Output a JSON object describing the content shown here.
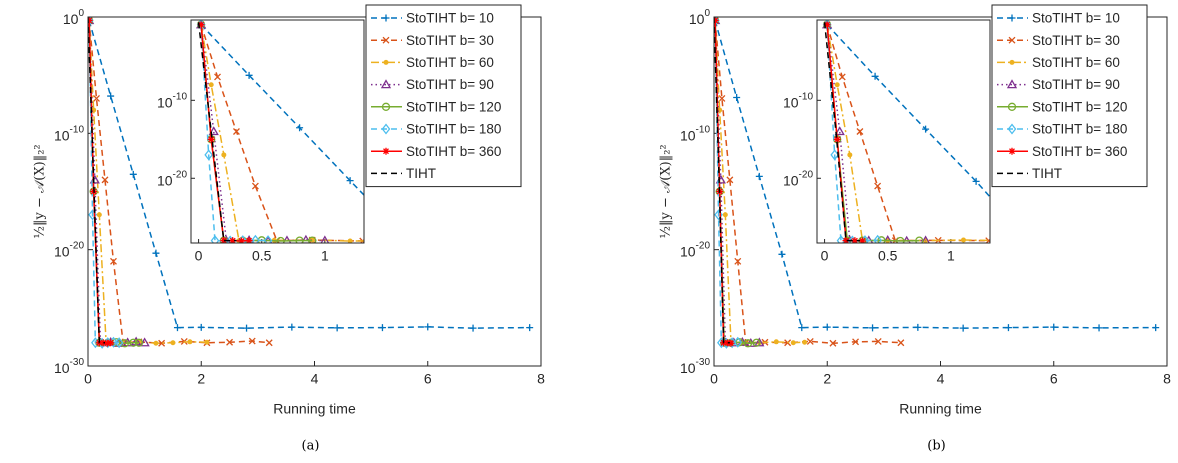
{
  "chart_data": [
    {
      "type": "line",
      "caption": "(a)",
      "xlabel": "Running time",
      "ylabel": "½‖y − 𝒜(X)‖₂²",
      "yscale": "log",
      "xlim": [
        0,
        8
      ],
      "xticks": [
        0,
        2,
        4,
        6,
        8
      ],
      "ylim": [
        1e-30,
        1
      ],
      "yticks": [
        {
          "value": 1,
          "label": "10^0"
        },
        {
          "value": 1e-10,
          "label": "10^-10"
        },
        {
          "value": 1e-20,
          "label": "10^-20"
        },
        {
          "value": 1e-30,
          "label": "10^-30"
        }
      ],
      "inset": {
        "xlim": [
          -0.06,
          1.31
        ],
        "xticks": [
          0,
          0.5,
          1
        ],
        "ylim": [
          5e-29,
          2
        ],
        "yticks": [
          {
            "value": 1e-10,
            "label": "10^-10"
          },
          {
            "value": 1e-20,
            "label": "10^-20"
          }
        ]
      },
      "series": [
        {
          "name": "StoTIHT b= 10",
          "color": "#0072BD",
          "linestyle": "dashed",
          "marker": "plus",
          "x": [
            0.02,
            0.4,
            0.8,
            1.2,
            1.58,
            2.0,
            2.8,
            3.6,
            4.4,
            5.2,
            6.0,
            6.8,
            7.8
          ],
          "values": [
            0.5,
            1.6e-07,
            3e-14,
            5e-21,
            2e-27,
            2.1e-27,
            1.8e-27,
            2.2e-27,
            1.9e-27,
            2e-27,
            2.3e-27,
            1.8e-27,
            2e-27
          ]
        },
        {
          "name": "StoTIHT b= 30",
          "color": "#D95319",
          "linestyle": "dashed",
          "marker": "cross",
          "x": [
            0.02,
            0.15,
            0.3,
            0.45,
            0.62,
            0.9,
            1.3,
            1.7,
            2.1,
            2.5,
            2.9,
            3.2
          ],
          "values": [
            0.5,
            1e-07,
            1e-14,
            1e-21,
            1e-28,
            1.2e-28,
            9e-29,
            1.3e-28,
            1e-28,
            1.1e-28,
            1.4e-28,
            1e-28
          ]
        },
        {
          "name": "StoTIHT b= 60",
          "color": "#EDB120",
          "linestyle": "dashdot",
          "marker": "dot",
          "x": [
            0.02,
            0.1,
            0.2,
            0.32,
            0.6,
            0.9,
            1.2,
            1.5,
            1.8,
            2.1
          ],
          "values": [
            0.5,
            1e-08,
            1e-17,
            1e-28,
            1.1e-28,
            1.2e-28,
            9e-29,
            1e-28,
            1.2e-28,
            1.1e-28
          ]
        },
        {
          "name": "StoTIHT b= 90",
          "color": "#7E2F8E",
          "linestyle": "dotted",
          "marker": "triangle",
          "x": [
            0.02,
            0.12,
            0.22,
            0.4,
            0.55,
            0.7,
            0.85,
            1.0
          ],
          "values": [
            0.5,
            1e-14,
            1e-28,
            1.1e-28,
            9e-29,
            1e-28,
            1.2e-28,
            1e-28
          ]
        },
        {
          "name": "StoTIHT b= 120",
          "color": "#77AC30",
          "linestyle": "solid",
          "marker": "circle",
          "x": [
            0.02,
            0.1,
            0.2,
            0.35,
            0.5,
            0.65,
            0.8,
            0.9
          ],
          "values": [
            0.5,
            1e-15,
            1e-28,
            1e-28,
            1.1e-28,
            9e-29,
            1e-28,
            1e-28
          ]
        },
        {
          "name": "StoTIHT b= 180",
          "color": "#4DBEEE",
          "linestyle": "dashed",
          "marker": "diamond",
          "x": [
            0.02,
            0.08,
            0.13,
            0.25,
            0.35,
            0.45,
            0.55
          ],
          "values": [
            0.5,
            1e-17,
            1e-28,
            9e-29,
            1e-28,
            1.1e-28,
            1e-28
          ]
        },
        {
          "name": "StoTIHT b= 360",
          "color": "#FF0000",
          "linestyle": "solid",
          "marker": "star",
          "x": [
            0.02,
            0.1,
            0.2,
            0.27,
            0.34,
            0.4
          ],
          "values": [
            0.5,
            1e-15,
            1e-28,
            1e-28,
            9e-29,
            1e-28
          ]
        },
        {
          "name": "TIHT",
          "color": "#000000",
          "linestyle": "dashed",
          "marker": "none",
          "x": [
            0,
            0.1,
            0.2,
            0.3
          ],
          "values": [
            1,
            1e-14,
            1e-28,
            1e-28
          ]
        }
      ]
    },
    {
      "type": "line",
      "caption": "(b)",
      "xlabel": "Running time",
      "ylabel": "½‖y − 𝒜(X)‖₂²",
      "yscale": "log",
      "xlim": [
        0,
        8
      ],
      "xticks": [
        0,
        2,
        4,
        6,
        8
      ],
      "ylim": [
        1e-30,
        1
      ],
      "yticks": [
        {
          "value": 1,
          "label": "10^0"
        },
        {
          "value": 1e-10,
          "label": "10^-10"
        },
        {
          "value": 1e-20,
          "label": "10^-20"
        },
        {
          "value": 1e-30,
          "label": "10^-30"
        }
      ],
      "inset": {
        "xlim": [
          -0.06,
          1.31
        ],
        "xticks": [
          0,
          0.5,
          1
        ],
        "ylim": [
          5e-29,
          2
        ],
        "yticks": [
          {
            "value": 1e-10,
            "label": "10^-10"
          },
          {
            "value": 1e-20,
            "label": "10^-20"
          }
        ]
      },
      "series": [
        {
          "name": "StoTIHT b= 10",
          "color": "#0072BD",
          "linestyle": "dashed",
          "marker": "plus",
          "x": [
            0.02,
            0.4,
            0.8,
            1.2,
            1.55,
            2.0,
            2.8,
            3.6,
            4.4,
            5.2,
            6.0,
            6.8,
            7.8
          ],
          "values": [
            0.5,
            1.2e-07,
            2e-14,
            4e-21,
            2e-27,
            2.2e-27,
            1.9e-27,
            2.1e-27,
            1.8e-27,
            2e-27,
            2.2e-27,
            1.9e-27,
            2e-27
          ]
        },
        {
          "name": "StoTIHT b= 30",
          "color": "#D95319",
          "linestyle": "dashed",
          "marker": "cross",
          "x": [
            0.02,
            0.14,
            0.28,
            0.42,
            0.56,
            0.9,
            1.3,
            1.7,
            2.1,
            2.5,
            2.9,
            3.3
          ],
          "values": [
            0.5,
            1e-07,
            1e-14,
            1e-21,
            1e-28,
            1.1e-28,
            1e-28,
            1.3e-28,
            9e-29,
            1.2e-28,
            1.3e-28,
            1e-28
          ]
        },
        {
          "name": "StoTIHT b= 60",
          "color": "#EDB120",
          "linestyle": "dashdot",
          "marker": "dot",
          "x": [
            0.02,
            0.1,
            0.2,
            0.3,
            0.5,
            0.8,
            1.1,
            1.4,
            1.6
          ],
          "values": [
            0.5,
            1e-08,
            1e-17,
            1e-28,
            1.1e-28,
            1e-28,
            1.2e-28,
            1e-28,
            1.1e-28
          ]
        },
        {
          "name": "StoTIHT b= 90",
          "color": "#7E2F8E",
          "linestyle": "dotted",
          "marker": "triangle",
          "x": [
            0.02,
            0.12,
            0.2,
            0.35,
            0.5,
            0.65,
            0.8
          ],
          "values": [
            0.5,
            1e-14,
            1e-28,
            1e-28,
            1.1e-28,
            9e-29,
            1e-28
          ]
        },
        {
          "name": "StoTIHT b= 120",
          "color": "#77AC30",
          "linestyle": "solid",
          "marker": "circle",
          "x": [
            0.02,
            0.1,
            0.18,
            0.3,
            0.45,
            0.6,
            0.75
          ],
          "values": [
            0.5,
            1e-15,
            1e-28,
            1e-28,
            1.1e-28,
            9e-29,
            1e-28
          ]
        },
        {
          "name": "StoTIHT b= 180",
          "color": "#4DBEEE",
          "linestyle": "dashed",
          "marker": "diamond",
          "x": [
            0.02,
            0.08,
            0.13,
            0.22,
            0.32,
            0.42
          ],
          "values": [
            0.5,
            1e-17,
            1e-28,
            9e-29,
            1e-28,
            1.1e-28
          ]
        },
        {
          "name": "StoTIHT b= 360",
          "color": "#FF0000",
          "linestyle": "solid",
          "marker": "star",
          "x": [
            0.02,
            0.1,
            0.17,
            0.24,
            0.3
          ],
          "values": [
            0.5,
            1e-15,
            1e-28,
            1e-28,
            9e-29
          ]
        },
        {
          "name": "TIHT",
          "color": "#000000",
          "linestyle": "dashed",
          "marker": "none",
          "x": [
            0,
            0.09,
            0.17,
            0.28
          ],
          "values": [
            1,
            1e-14,
            1e-28,
            1e-28
          ]
        }
      ]
    }
  ]
}
